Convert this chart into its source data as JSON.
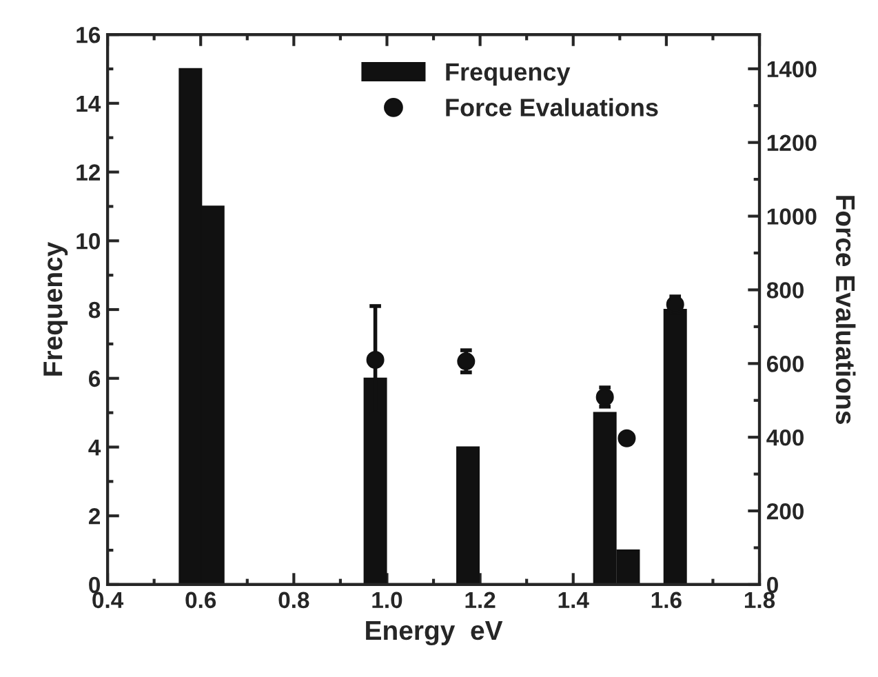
{
  "chart_data": {
    "type": "bar",
    "xlabel": "Energy  eV",
    "ylabel": "Frequency",
    "y2label": "Force Evaluations",
    "xlim": [
      0.4,
      1.8
    ],
    "xticks": [
      {
        "value": 0.4,
        "label": "0.4"
      },
      {
        "value": 0.6,
        "label": "0.6"
      },
      {
        "value": 0.8,
        "label": "0.8"
      },
      {
        "value": 1.0,
        "label": "1.0"
      },
      {
        "value": 1.2,
        "label": "1.2"
      },
      {
        "value": 1.4,
        "label": "1.4"
      },
      {
        "value": 1.6,
        "label": "1.6"
      },
      {
        "value": 1.8,
        "label": "1.8"
      }
    ],
    "ylim": [
      0,
      16
    ],
    "yticks": [
      0,
      2,
      4,
      6,
      8,
      10,
      12,
      14,
      16
    ],
    "y2lim": [
      0,
      1493
    ],
    "y2ticks": [
      0,
      200,
      400,
      600,
      800,
      1000,
      1200,
      1400
    ],
    "legend": "top right",
    "grid": false,
    "series": [
      {
        "name": "Frequency",
        "color": "#111111",
        "x": [
          0.578,
          0.626,
          0.975,
          1.174,
          1.468,
          1.518,
          1.619
        ],
        "values": [
          15,
          11,
          6,
          4,
          5,
          1,
          8
        ]
      },
      {
        "name": "Force Evaluations",
        "type": "scatter",
        "axis": "y2",
        "marker": "circle",
        "color": "#111111",
        "x": [
          0.975,
          1.17,
          1.468,
          1.515,
          1.619
        ],
        "values": [
          610,
          606,
          509,
          397,
          760
        ],
        "errors": [
          146,
          30,
          26,
          null,
          22
        ]
      }
    ]
  }
}
